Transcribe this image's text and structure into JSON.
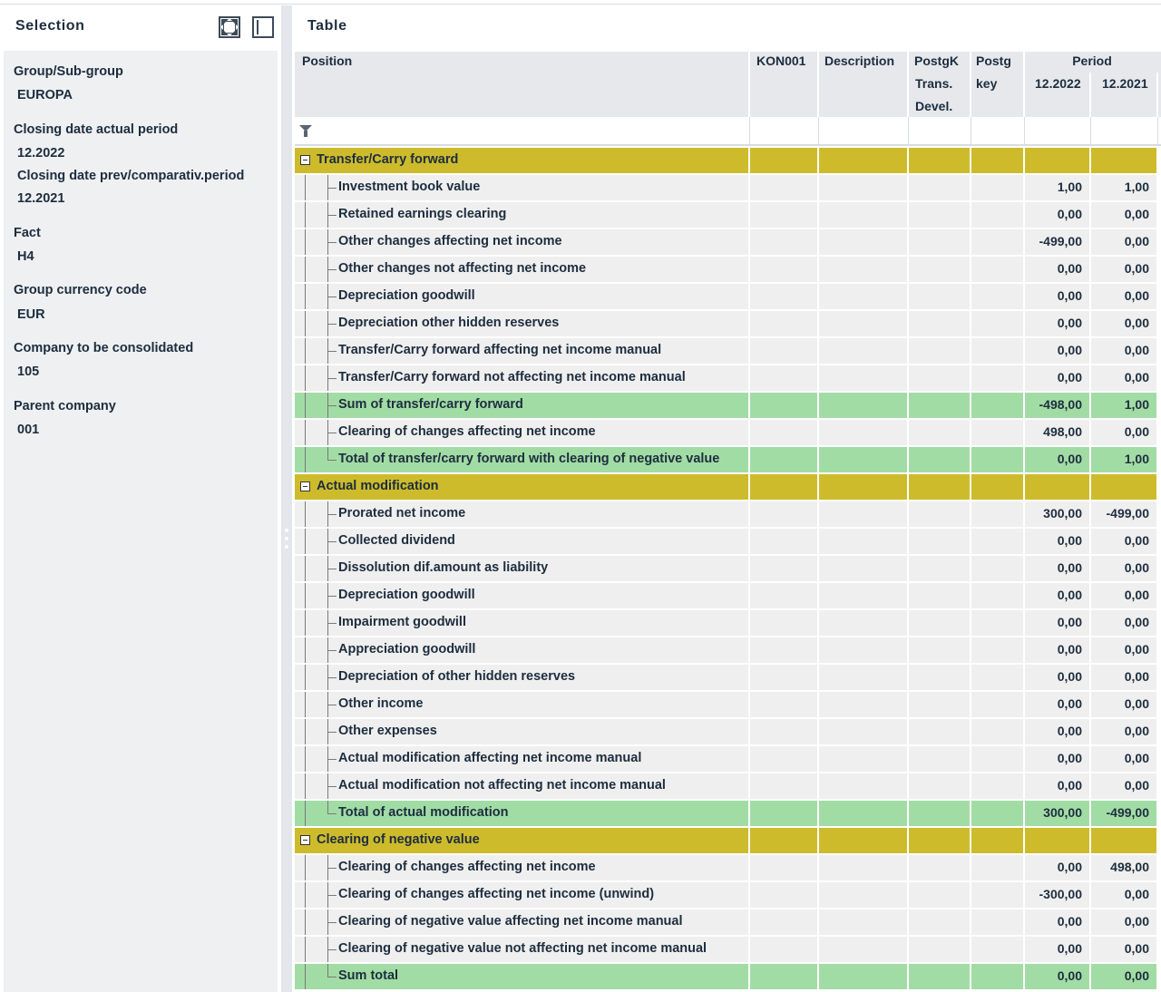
{
  "selection": {
    "title": "Selection",
    "fields": [
      {
        "label": "Group/Sub-group",
        "value": "EUROPA"
      },
      {
        "label": "Closing date actual period",
        "value": "12.2022"
      },
      {
        "label": "Closing date prev/comparativ.period",
        "value": "12.2021"
      },
      {
        "label": "Fact",
        "value": "H4"
      },
      {
        "label": "Group currency code",
        "value": "EUR"
      },
      {
        "label": "Company to be consolidated",
        "value": "105"
      },
      {
        "label": "Parent company",
        "value": "001"
      }
    ]
  },
  "table": {
    "title": "Table",
    "columns": {
      "position": "Position",
      "kon001": "KON001",
      "description": "Description",
      "postgk1": "PostgK",
      "postgk2": "Trans.",
      "postgk3": "Devel.",
      "postgkey1": "Postg",
      "postgkey2": "key",
      "period": "Period",
      "period1": "12.2022",
      "period2": "12.2021"
    },
    "rows": [
      {
        "type": "group",
        "label": "Transfer/Carry forward",
        "p1": "",
        "p2": ""
      },
      {
        "type": "normal",
        "label": "Investment book value",
        "p1": "1,00",
        "p2": "1,00"
      },
      {
        "type": "normal",
        "label": "Retained earnings clearing",
        "p1": "0,00",
        "p2": "0,00"
      },
      {
        "type": "normal",
        "label": "Other changes affecting net income",
        "p1": "-499,00",
        "p2": "0,00"
      },
      {
        "type": "normal",
        "label": "Other changes not affecting net income",
        "p1": "0,00",
        "p2": "0,00"
      },
      {
        "type": "normal",
        "label": "Depreciation goodwill",
        "p1": "0,00",
        "p2": "0,00"
      },
      {
        "type": "normal",
        "label": "Depreciation other hidden reserves",
        "p1": "0,00",
        "p2": "0,00"
      },
      {
        "type": "normal",
        "label": "Transfer/Carry forward affecting net income manual",
        "p1": "0,00",
        "p2": "0,00"
      },
      {
        "type": "normal",
        "label": "Transfer/Carry forward not affecting net income manual",
        "p1": "0,00",
        "p2": "0,00"
      },
      {
        "type": "sum",
        "label": "Sum of transfer/carry forward",
        "p1": "-498,00",
        "p2": "1,00"
      },
      {
        "type": "normal",
        "label": "Clearing of changes affecting net income",
        "p1": "498,00",
        "p2": "0,00"
      },
      {
        "type": "sum",
        "label": "Total of transfer/carry forward with clearing of negative value",
        "p1": "0,00",
        "p2": "1,00",
        "last": true
      },
      {
        "type": "group",
        "label": "Actual modification",
        "p1": "",
        "p2": ""
      },
      {
        "type": "normal",
        "label": "Prorated net income",
        "p1": "300,00",
        "p2": "-499,00"
      },
      {
        "type": "normal",
        "label": "Collected dividend",
        "p1": "0,00",
        "p2": "0,00"
      },
      {
        "type": "normal",
        "label": "Dissolution dif.amount as liability",
        "p1": "0,00",
        "p2": "0,00"
      },
      {
        "type": "normal",
        "label": "Depreciation goodwill",
        "p1": "0,00",
        "p2": "0,00"
      },
      {
        "type": "normal",
        "label": "Impairment goodwill",
        "p1": "0,00",
        "p2": "0,00"
      },
      {
        "type": "normal",
        "label": "Appreciation goodwill",
        "p1": "0,00",
        "p2": "0,00"
      },
      {
        "type": "normal",
        "label": "Depreciation  of other hidden reserves",
        "p1": "0,00",
        "p2": "0,00"
      },
      {
        "type": "normal",
        "label": "Other income",
        "p1": "0,00",
        "p2": "0,00"
      },
      {
        "type": "normal",
        "label": "Other expenses",
        "p1": "0,00",
        "p2": "0,00"
      },
      {
        "type": "normal",
        "label": "Actual modification affecting net income manual",
        "p1": "0,00",
        "p2": "0,00"
      },
      {
        "type": "normal",
        "label": "Actual modification not affecting net income manual",
        "p1": "0,00",
        "p2": "0,00"
      },
      {
        "type": "sum",
        "label": "Total of actual modification",
        "p1": "300,00",
        "p2": "-499,00",
        "last": true
      },
      {
        "type": "group",
        "label": "Clearing of negative value",
        "p1": "",
        "p2": ""
      },
      {
        "type": "normal",
        "label": "Clearing of changes affecting net income",
        "p1": "0,00",
        "p2": "498,00"
      },
      {
        "type": "normal",
        "label": "Clearing of changes affecting net income (unwind)",
        "p1": "-300,00",
        "p2": "0,00"
      },
      {
        "type": "normal",
        "label": "Clearing of negative value affecting net income manual",
        "p1": "0,00",
        "p2": "0,00"
      },
      {
        "type": "normal",
        "label": "Clearing of negative value not affecting net income manual",
        "p1": "0,00",
        "p2": "0,00"
      },
      {
        "type": "sum",
        "label": "Sum total",
        "p1": "0,00",
        "p2": "0,00",
        "last": true
      }
    ]
  },
  "colors": {
    "group_row": "#cdbb2c",
    "sum_row": "#a2dca5",
    "normal_row": "#efefef"
  }
}
